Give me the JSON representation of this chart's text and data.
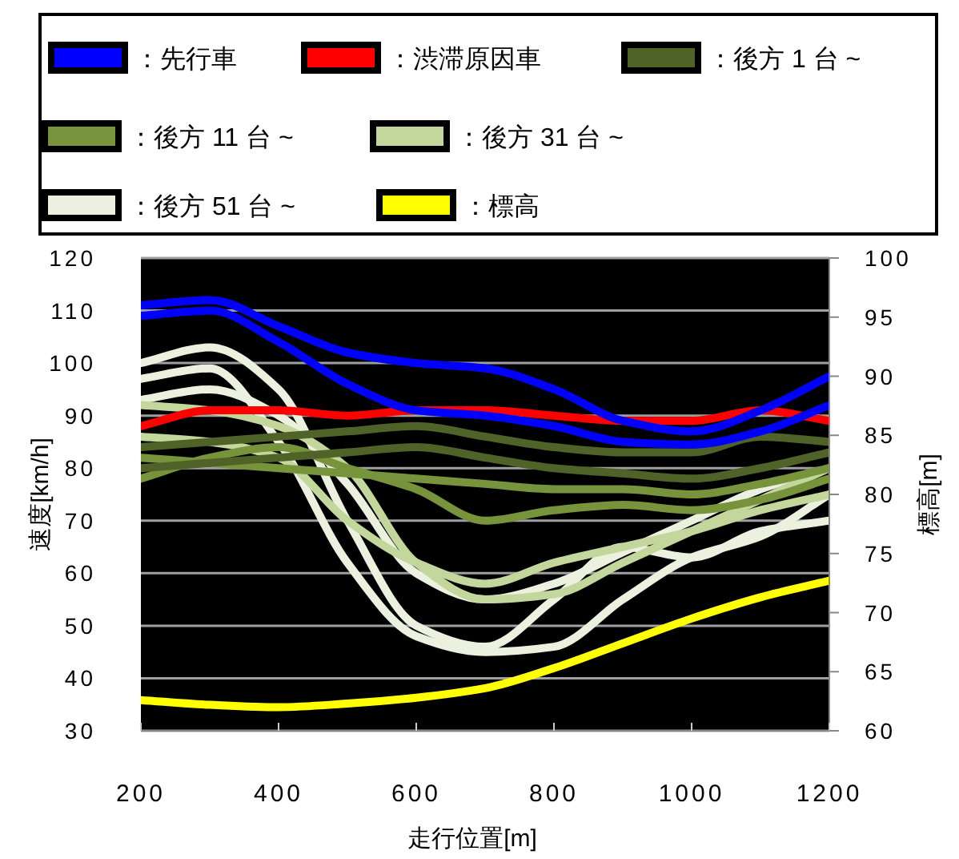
{
  "chart_data": {
    "type": "line",
    "xlabel": "走行位置[m]",
    "ylabel": "速度[km/h]",
    "y2label": "標高[m]",
    "xlim": [
      200,
      1200
    ],
    "xticks": [
      200,
      400,
      600,
      800,
      1000,
      1200
    ],
    "ylim": [
      30,
      120
    ],
    "yticks": [
      30,
      40,
      50,
      60,
      70,
      80,
      90,
      100,
      110,
      120
    ],
    "y2lim": [
      60,
      100
    ],
    "y2ticks": [
      60,
      65,
      70,
      75,
      80,
      85,
      90,
      95,
      100
    ],
    "grid": "y",
    "legend": "top",
    "marker": "none",
    "line_style": "solid",
    "x": [
      200,
      300,
      400,
      500,
      600,
      700,
      800,
      900,
      1000,
      1100,
      1200
    ],
    "series": [
      {
        "name": "：先行車",
        "color": "#0000ff",
        "values": [
          111,
          112,
          107,
          102,
          100,
          99,
          95,
          89,
          87,
          91,
          97.5
        ]
      },
      {
        "color": "#0000ff",
        "values": [
          109,
          110,
          104,
          96,
          91,
          90,
          88,
          85,
          84.5,
          87,
          92
        ]
      },
      {
        "name": "：渋滞原因車",
        "color": "#ff0000",
        "values": [
          88,
          91,
          91,
          90,
          91,
          91,
          90,
          89,
          89,
          91,
          89
        ]
      },
      {
        "name": "：後方 1 台 ~",
        "color": "#4f6228",
        "values": [
          84,
          85,
          86,
          87,
          88,
          86,
          84,
          83,
          83,
          86,
          85
        ]
      },
      {
        "color": "#4f6228",
        "values": [
          80,
          81,
          82,
          83,
          84,
          82,
          80,
          79,
          78,
          80,
          83
        ]
      },
      {
        "name": "：後方 11 台 ~",
        "color": "#77933c",
        "values": [
          82,
          81,
          80,
          79,
          78,
          77,
          76,
          76,
          75,
          77,
          80
        ]
      },
      {
        "color": "#77933c",
        "values": [
          78,
          82,
          84,
          80,
          76,
          70,
          72,
          73,
          72,
          74,
          78
        ]
      },
      {
        "name": "：後方 31 台 ~",
        "color": "#c3d69b",
        "values": [
          86,
          85,
          82,
          70,
          62,
          58,
          62,
          65,
          68,
          72,
          75
        ]
      },
      {
        "color": "#c3d69b",
        "values": [
          92,
          91,
          88,
          80,
          62,
          55,
          56,
          62,
          68,
          74,
          80
        ]
      },
      {
        "name": "：後方 51 台 ~",
        "color": "#ebf1de",
        "values": [
          100,
          103,
          95,
          70,
          50,
          46,
          55,
          65,
          63,
          68,
          70
        ]
      },
      {
        "color": "#ebf1de",
        "values": [
          97,
          99,
          85,
          62,
          48,
          45,
          46,
          55,
          63,
          67,
          75
        ]
      },
      {
        "color": "#ebf1de",
        "values": [
          93,
          95,
          90,
          77,
          60,
          55,
          58,
          64,
          70,
          76,
          80
        ]
      },
      {
        "name": "：標高",
        "color": "#ffff00",
        "axis": "y2",
        "values": [
          62.6,
          62.2,
          62.0,
          62.3,
          62.8,
          63.6,
          65.3,
          67.4,
          69.5,
          71.3,
          72.7
        ]
      }
    ]
  }
}
